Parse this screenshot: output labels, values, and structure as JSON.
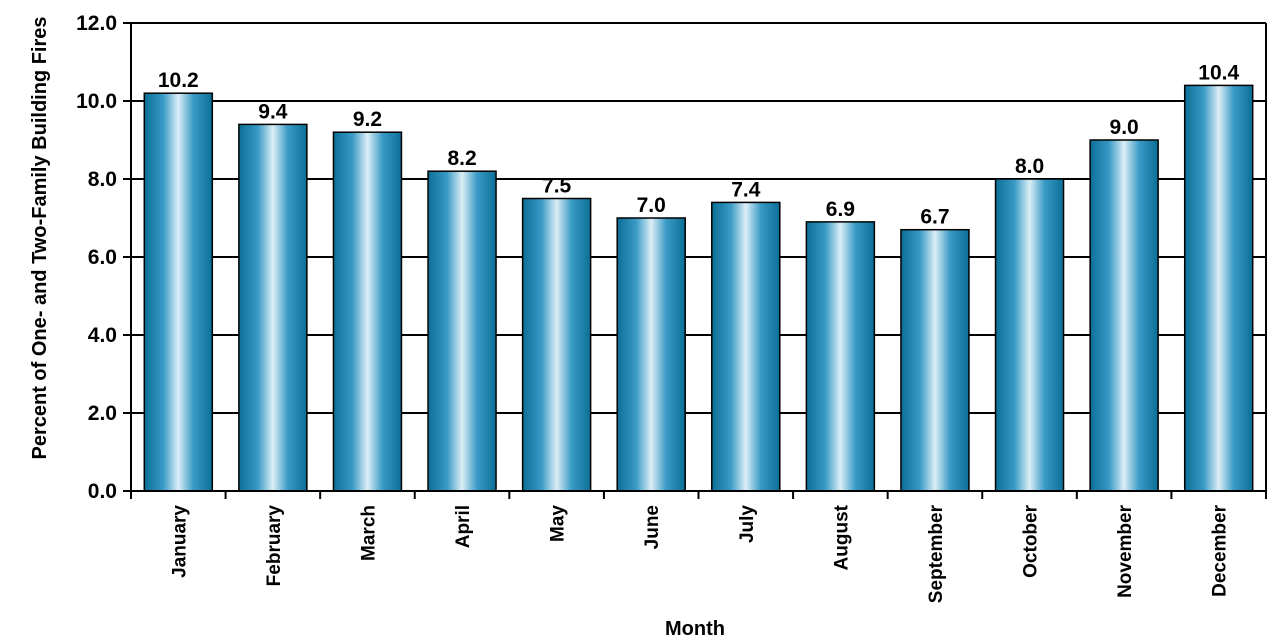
{
  "chart_data": {
    "type": "bar",
    "categories": [
      "January",
      "February",
      "March",
      "April",
      "May",
      "June",
      "July",
      "August",
      "September",
      "October",
      "November",
      "December"
    ],
    "values": [
      10.2,
      9.4,
      9.2,
      8.2,
      7.5,
      7.0,
      7.4,
      6.9,
      6.7,
      8.0,
      9.0,
      10.4
    ],
    "value_labels": [
      "10.2",
      "9.4",
      "9.2",
      "8.2",
      "7.5",
      "7.0",
      "7.4",
      "6.9",
      "6.7",
      "8.0",
      "9.0",
      "10.4"
    ],
    "xlabel": "Month",
    "ylabel": "Percent of One- and Two-Family Building Fires",
    "ylim": [
      0,
      12
    ],
    "yticks": [
      0,
      2,
      4,
      6,
      8,
      10,
      12
    ],
    "ytick_labels": [
      "0.0",
      "2.0",
      "4.0",
      "6.0",
      "8.0",
      "10.0",
      "12.0"
    ],
    "grid": "horizontal",
    "colors": {
      "bar_edge": "#0a6f96",
      "bar_center": "#dceef6",
      "bar_mid": "#3a9bc6",
      "outline": "#000000"
    }
  }
}
